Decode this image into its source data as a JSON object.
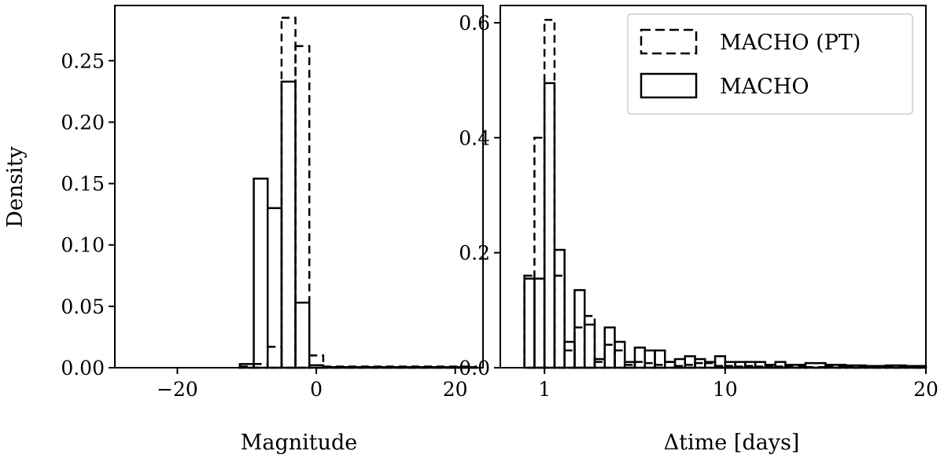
{
  "chart_data": [
    {
      "type": "bar",
      "subtype": "step-histogram",
      "xlabel": "Magnitude",
      "ylabel": "Density",
      "xlim": [
        -29,
        24
      ],
      "ylim": [
        0,
        0.295
      ],
      "xticks": [
        -20,
        0,
        20
      ],
      "xtick_labels": [
        "−20",
        "0",
        "20"
      ],
      "yticks": [
        0.0,
        0.05,
        0.1,
        0.15,
        0.2,
        0.25
      ],
      "ytick_labels": [
        "0.00",
        "0.05",
        "0.10",
        "0.15",
        "0.20",
        "0.25"
      ],
      "grid": false,
      "series": [
        {
          "name": "MACHO (PT)",
          "style": "dashed",
          "color": "#000000",
          "edges": [
            -27,
            -11,
            -9,
            -7,
            -5,
            -3,
            -1,
            1,
            23
          ],
          "values": [
            0.0,
            0.001,
            0.003,
            0.017,
            0.285,
            0.262,
            0.01,
            0.001
          ]
        },
        {
          "name": "MACHO",
          "style": "solid",
          "color": "#000000",
          "edges": [
            -27,
            -11,
            -9,
            -7,
            -5,
            -3,
            -1,
            1,
            23
          ],
          "values": [
            0.0,
            0.003,
            0.154,
            0.13,
            0.233,
            0.053,
            0.002,
            0.0005
          ]
        }
      ]
    },
    {
      "type": "bar",
      "subtype": "step-histogram",
      "xlabel": "Δtime [days]",
      "ylabel": "",
      "xlim": [
        -1.2,
        20
      ],
      "ylim": [
        0,
        0.63
      ],
      "xticks": [
        1,
        10,
        20
      ],
      "xtick_labels": [
        "1",
        "10",
        "20"
      ],
      "yticks": [
        0.0,
        0.2,
        0.4,
        0.6
      ],
      "ytick_labels": [
        "0.0",
        "0.2",
        "0.4",
        "0.6"
      ],
      "grid": false,
      "legend": {
        "placement": "top-right",
        "entries": [
          {
            "label": "MACHO (PT)",
            "style": "dashed"
          },
          {
            "label": "MACHO",
            "style": "solid"
          }
        ]
      },
      "series": [
        {
          "name": "MACHO (PT)",
          "style": "dashed",
          "color": "#000000",
          "edges": [
            0.0,
            0.5,
            1.0,
            1.5,
            2.0,
            2.5,
            3.0,
            3.5,
            4.0,
            4.5,
            5.0,
            5.5,
            6.0,
            6.5,
            7.0,
            7.5,
            8.0,
            8.5,
            9.0,
            9.5,
            10.0,
            10.5,
            11.0,
            11.5,
            12.0,
            12.5,
            13.0,
            14.0,
            15.0,
            16.0,
            17.0,
            18.0,
            19.0,
            20.0
          ],
          "values": [
            0.16,
            0.4,
            0.605,
            0.16,
            0.03,
            0.07,
            0.09,
            0.01,
            0.04,
            0.03,
            0.005,
            0.01,
            0.008,
            0.005,
            0.01,
            0.003,
            0.005,
            0.008,
            0.008,
            0.003,
            0.003,
            0.002,
            0.003,
            0.002,
            0.003,
            0.002,
            0.002,
            0.001,
            0.002,
            0.001,
            0.001,
            0.001,
            0.001
          ]
        },
        {
          "name": "MACHO",
          "style": "solid",
          "color": "#000000",
          "edges": [
            0.0,
            0.5,
            1.0,
            1.5,
            2.0,
            2.5,
            3.0,
            3.5,
            4.0,
            4.5,
            5.0,
            5.5,
            6.0,
            6.5,
            7.0,
            7.5,
            8.0,
            8.5,
            9.0,
            9.5,
            10.0,
            10.5,
            11.0,
            11.5,
            12.0,
            12.5,
            13.0,
            14.0,
            15.0,
            16.0,
            17.0,
            18.0,
            19.0,
            20.0
          ],
          "values": [
            0.155,
            0.155,
            0.495,
            0.205,
            0.045,
            0.135,
            0.075,
            0.015,
            0.07,
            0.045,
            0.01,
            0.035,
            0.03,
            0.03,
            0.01,
            0.015,
            0.02,
            0.015,
            0.01,
            0.02,
            0.01,
            0.01,
            0.01,
            0.01,
            0.005,
            0.01,
            0.005,
            0.008,
            0.005,
            0.004,
            0.003,
            0.004,
            0.003
          ]
        }
      ]
    }
  ]
}
